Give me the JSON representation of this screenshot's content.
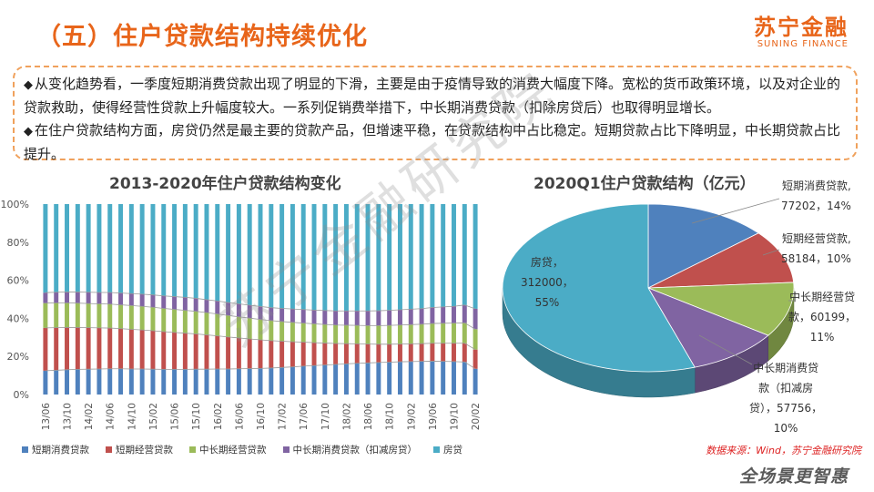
{
  "header": {
    "title": "（五）住户贷款结构持续优化"
  },
  "logo": {
    "cn": "苏宁金融",
    "en": "SUNING FINANCE"
  },
  "summary": {
    "bullet1": "从变化趋势看，一季度短期消费贷款出现了明显的下滑，主要是由于疫情导致的消费大幅度下降。宽松的货币政策环境，以及对企业的贷款救助，使得经营性贷款上升幅度较大。一系列促销费举措下，中长期消费贷款（扣除房贷后）也取得明显增长。",
    "bullet2": "在住户贷款结构方面，房贷仍然是最主要的贷款产品，但增速平稳，在贷款结构中占比稳定。短期贷款占比下降明显，中长期贷款占比提升。"
  },
  "footer": {
    "source": "数据来源：Wind，苏宁金融研究院",
    "slogan": "全场景更智惠",
    "watermark": "苏宁金融研究院"
  },
  "colors": {
    "short_consumer": "#4f81bd",
    "short_business": "#c0504d",
    "long_business": "#9bbb59",
    "long_consumer": "#8064a2",
    "mortgage": "#4bacc6",
    "accent": "#e8651a"
  },
  "chart_data": [
    {
      "type": "bar",
      "stacked": true,
      "title": "2013-2020年住户贷款结构变化",
      "xlabel": "",
      "ylabel": "",
      "ylim": [
        0,
        100
      ],
      "yticks": [
        "0%",
        "20%",
        "40%",
        "60%",
        "80%",
        "100%"
      ],
      "categories": [
        "13/06",
        "13/08",
        "13/10",
        "13/12",
        "14/02",
        "14/04",
        "14/06",
        "14/08",
        "14/10",
        "14/12",
        "15/02",
        "15/04",
        "15/06",
        "15/08",
        "15/10",
        "15/12",
        "16/02",
        "16/04",
        "16/06",
        "16/08",
        "16/10",
        "16/12",
        "17/02",
        "17/04",
        "17/06",
        "17/08",
        "17/10",
        "17/12",
        "18/02",
        "18/04",
        "18/06",
        "18/08",
        "18/10",
        "18/12",
        "19/02",
        "19/04",
        "19/06",
        "19/08",
        "19/10",
        "19/12",
        "20/02"
      ],
      "xticks_shown": [
        "13/06",
        "13/10",
        "14/02",
        "14/06",
        "14/10",
        "15/02",
        "15/06",
        "15/10",
        "16/02",
        "16/06",
        "16/10",
        "17/02",
        "17/06",
        "17/10",
        "18/02",
        "18/06",
        "18/10",
        "19/02",
        "19/06",
        "19/10",
        "20/02"
      ],
      "series": [
        {
          "name": "短期消费贷款",
          "values": [
            12.5,
            12.7,
            13.0,
            13.2,
            13.3,
            13.4,
            13.5,
            13.5,
            13.4,
            13.4,
            13.3,
            13.2,
            13.2,
            13.2,
            13.3,
            13.3,
            13.4,
            13.4,
            13.5,
            13.6,
            13.7,
            13.9,
            14.2,
            14.5,
            14.9,
            15.2,
            15.5,
            15.8,
            16.1,
            16.4,
            16.6,
            16.8,
            17.0,
            17.2,
            17.3,
            17.4,
            17.5,
            17.4,
            17.3,
            17.1,
            13.5
          ]
        },
        {
          "name": "短期经营贷款",
          "values": [
            22.5,
            22.4,
            22.2,
            22.0,
            21.8,
            21.6,
            21.4,
            21.1,
            20.8,
            20.5,
            20.2,
            19.8,
            19.4,
            19.0,
            18.5,
            18.0,
            17.4,
            16.8,
            16.2,
            15.6,
            15.0,
            14.4,
            13.8,
            13.2,
            12.6,
            12.0,
            11.5,
            11.0,
            10.6,
            10.2,
            9.9,
            9.6,
            9.4,
            9.3,
            9.3,
            9.3,
            9.4,
            9.5,
            9.6,
            9.8,
            10.1
          ]
        },
        {
          "name": "中长期经营贷款",
          "values": [
            13.0,
            13.0,
            12.9,
            12.8,
            12.7,
            12.6,
            12.6,
            12.5,
            12.5,
            12.4,
            12.3,
            12.2,
            12.1,
            12.0,
            11.9,
            11.7,
            11.5,
            11.3,
            11.1,
            10.9,
            10.7,
            10.5,
            10.3,
            10.2,
            10.0,
            9.9,
            9.8,
            9.7,
            9.7,
            9.7,
            9.7,
            9.8,
            9.9,
            10.0,
            10.1,
            10.2,
            10.4,
            10.5,
            10.6,
            10.7,
            10.7
          ]
        },
        {
          "name": "中长期消费贷款（扣减房贷）",
          "values": [
            5.5,
            5.6,
            5.7,
            5.8,
            5.9,
            6.0,
            6.1,
            6.2,
            6.3,
            6.4,
            6.5,
            6.6,
            6.7,
            6.8,
            6.8,
            6.8,
            6.8,
            6.8,
            6.8,
            6.8,
            6.8,
            6.8,
            6.9,
            7.0,
            7.1,
            7.2,
            7.3,
            7.4,
            7.5,
            7.6,
            7.7,
            7.8,
            7.9,
            8.0,
            8.1,
            8.2,
            8.4,
            8.6,
            8.8,
            9.4,
            10.7
          ]
        },
        {
          "name": "房贷",
          "values": [
            46.5,
            46.3,
            46.2,
            46.2,
            46.3,
            46.4,
            46.4,
            46.7,
            47.0,
            47.3,
            47.7,
            48.2,
            48.6,
            49.0,
            49.5,
            50.2,
            50.9,
            51.7,
            52.4,
            53.1,
            53.8,
            54.4,
            54.8,
            55.1,
            55.4,
            55.7,
            55.9,
            56.1,
            56.1,
            56.1,
            56.1,
            56.0,
            55.8,
            55.5,
            55.2,
            54.9,
            54.3,
            54.0,
            53.7,
            53.0,
            55.0
          ]
        }
      ]
    },
    {
      "type": "pie",
      "title": "2020Q1住户贷款结构（亿元）",
      "slices": [
        {
          "name": "短期消费贷款",
          "value": 77202,
          "percent": "14%"
        },
        {
          "name": "短期经营贷款",
          "value": 58184,
          "percent": "10%"
        },
        {
          "name": "中长期经营贷款",
          "value": 60199,
          "percent": "11%"
        },
        {
          "name": "中长期消费贷款（扣减房贷）",
          "value": 57756,
          "percent": "10%"
        },
        {
          "name": "房贷",
          "value": 312000,
          "percent": "55%"
        }
      ],
      "labels": {
        "s0": [
          "短期消费贷款,",
          "77202，14%"
        ],
        "s1": [
          "短期经营贷款,",
          "58184，10%"
        ],
        "s2": [
          "中长期经营贷",
          "款，60199，",
          "11%"
        ],
        "s3": [
          "中长期消费贷",
          "款（扣减房",
          "贷），57756，",
          "10%"
        ],
        "s4": [
          "房贷，",
          "312000，",
          "55%"
        ]
      }
    }
  ]
}
